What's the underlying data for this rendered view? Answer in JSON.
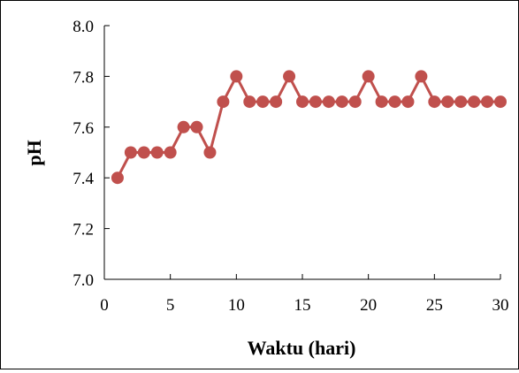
{
  "chart_data": {
    "type": "line",
    "title": "",
    "xlabel": "Waktu (hari)",
    "ylabel": "pH",
    "x_ticks": [
      "0",
      "5",
      "10",
      "15",
      "20",
      "25",
      "30"
    ],
    "y_ticks": [
      "7.0",
      "7.2",
      "7.4",
      "7.6",
      "7.8",
      "8.0"
    ],
    "xlim": [
      0,
      30
    ],
    "ylim": [
      7.0,
      8.0
    ],
    "grid": false,
    "legend": "none",
    "series": [
      {
        "color": "#c0504d",
        "marker": "circle",
        "x": [
          1,
          2,
          3,
          4,
          5,
          6,
          7,
          8,
          9,
          10,
          11,
          12,
          13,
          14,
          15,
          16,
          17,
          18,
          19,
          20,
          21,
          22,
          23,
          24,
          25,
          26,
          27,
          28,
          29,
          30
        ],
        "y": [
          7.4,
          7.5,
          7.5,
          7.5,
          7.5,
          7.6,
          7.6,
          7.5,
          7.7,
          7.8,
          7.7,
          7.7,
          7.7,
          7.8,
          7.7,
          7.7,
          7.7,
          7.7,
          7.7,
          7.8,
          7.7,
          7.7,
          7.7,
          7.8,
          7.7,
          7.7,
          7.7,
          7.7,
          7.7,
          7.7
        ]
      }
    ]
  }
}
